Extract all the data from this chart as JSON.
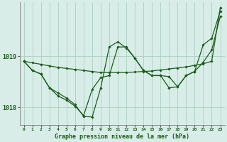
{
  "title": "Graphe pression niveau de la mer (hPa)",
  "background_color": "#d8ede8",
  "grid_color": "#aad0c0",
  "line_color": "#1a5c1a",
  "xlim": [
    -0.5,
    23.5
  ],
  "ylim": [
    1017.65,
    1020.05
  ],
  "yticks": [
    1018,
    1019
  ],
  "xticks": [
    0,
    1,
    2,
    3,
    4,
    5,
    6,
    7,
    8,
    9,
    10,
    11,
    12,
    13,
    14,
    15,
    16,
    17,
    18,
    19,
    20,
    21,
    22,
    23
  ],
  "series1": [
    1018.9,
    1018.87,
    1018.84,
    1018.81,
    1018.78,
    1018.76,
    1018.74,
    1018.72,
    1018.7,
    1018.68,
    1018.68,
    1018.68,
    1018.68,
    1018.69,
    1018.7,
    1018.71,
    1018.73,
    1018.75,
    1018.77,
    1018.79,
    1018.82,
    1018.85,
    1018.9,
    1019.95
  ],
  "series2": [
    1018.9,
    1018.72,
    1018.65,
    1018.38,
    1018.28,
    1018.18,
    1018.05,
    1017.82,
    1017.81,
    1018.38,
    1019.18,
    1019.28,
    1019.16,
    1018.96,
    1018.72,
    1018.62,
    1018.62,
    1018.6,
    1018.4,
    1018.62,
    1018.7,
    1019.22,
    1019.35,
    1019.88
  ],
  "series3": [
    1018.9,
    1018.72,
    1018.65,
    1018.38,
    1018.22,
    1018.14,
    1018.02,
    1017.84,
    1018.35,
    1018.58,
    1018.62,
    1019.18,
    1019.18,
    1018.96,
    1018.72,
    1018.62,
    1018.62,
    1018.38,
    1018.4,
    1018.62,
    1018.7,
    1018.88,
    1019.12,
    1019.78
  ]
}
